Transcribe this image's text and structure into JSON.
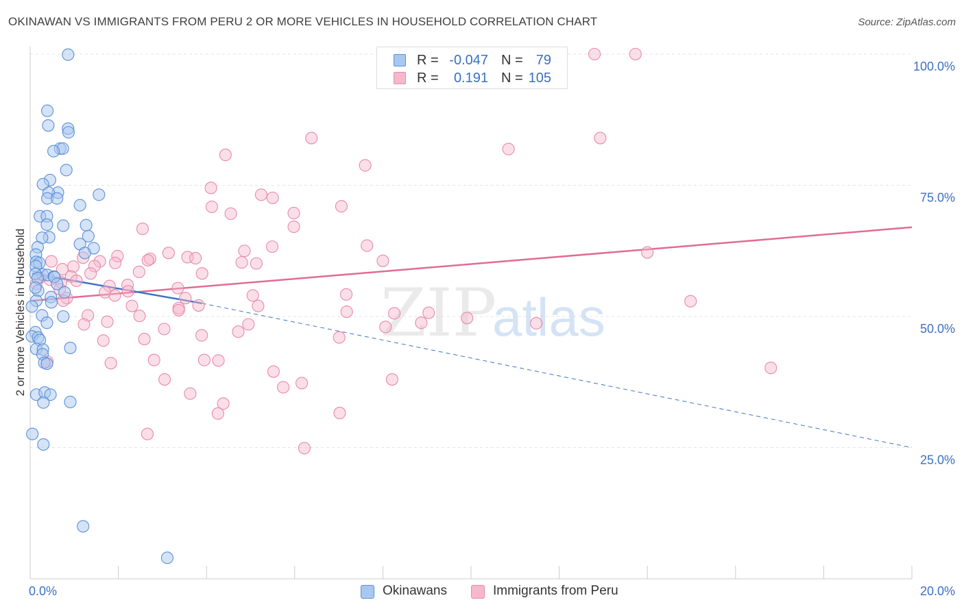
{
  "header": {
    "title": "OKINAWAN VS IMMIGRANTS FROM PERU 2 OR MORE VEHICLES IN HOUSEHOLD CORRELATION CHART",
    "source": "Source: ZipAtlas.com"
  },
  "legend_stats": [
    {
      "r_label": "R =",
      "r_value": "-0.047",
      "n_label": "N =",
      "n_value": "79"
    },
    {
      "r_label": "R =",
      "r_value": "0.191",
      "n_label": "N =",
      "n_value": "105"
    }
  ],
  "watermark": {
    "zip": "ZIP",
    "atlas": "atlas"
  },
  "colors": {
    "okinawan_fill": "#a9c8f0",
    "okinawan_stroke": "#5b8fd6",
    "okinawan_line": "#3b72c8",
    "peru_fill": "#f7b8cc",
    "peru_stroke": "#e889a7",
    "peru_line": "#e06b93",
    "axis_text": "#3a6fc4",
    "grid": "#e3e3e3"
  },
  "chart_data": {
    "type": "scatter",
    "xlabel": "",
    "ylabel": "2 or more Vehicles in Household",
    "xlim": [
      0,
      20
    ],
    "ylim": [
      0,
      100
    ],
    "x_tick_labels": [
      {
        "value": 0,
        "label": "0.0%"
      },
      {
        "value": 20,
        "label": "20.0%"
      }
    ],
    "y_tick_labels": [
      {
        "value": 100,
        "label": "100.0%"
      },
      {
        "value": 75,
        "label": "75.0%"
      },
      {
        "value": 50,
        "label": "50.0%"
      },
      {
        "value": 25,
        "label": "25.0%"
      }
    ],
    "y_gridlines": [
      100,
      75,
      50,
      25
    ],
    "x_minor_ticks": [
      2,
      4,
      6,
      8,
      10,
      12,
      14,
      16,
      18,
      20
    ],
    "legend_position": "top-center",
    "series": [
      {
        "name": "Okinawans",
        "trend": {
          "x0": 0.05,
          "y0": 58.2,
          "x1": 3.9,
          "y1": 52.5,
          "dash_x1": 20,
          "dash_y1": 25.0
        },
        "points": [
          [
            0.86,
            99.9
          ],
          [
            0.39,
            89.2
          ],
          [
            0.41,
            86.4
          ],
          [
            0.86,
            85.8
          ],
          [
            0.87,
            85.1
          ],
          [
            0.68,
            82.0
          ],
          [
            0.74,
            82.0
          ],
          [
            0.53,
            81.5
          ],
          [
            0.82,
            77.9
          ],
          [
            0.45,
            76.0
          ],
          [
            0.29,
            75.2
          ],
          [
            1.56,
            73.2
          ],
          [
            0.63,
            73.6
          ],
          [
            0.42,
            73.6
          ],
          [
            0.39,
            72.5
          ],
          [
            0.61,
            72.5
          ],
          [
            1.13,
            71.2
          ],
          [
            0.22,
            69.1
          ],
          [
            0.38,
            69.1
          ],
          [
            0.75,
            67.3
          ],
          [
            1.27,
            67.4
          ],
          [
            0.38,
            67.5
          ],
          [
            0.43,
            65.1
          ],
          [
            1.32,
            65.3
          ],
          [
            0.27,
            65.0
          ],
          [
            1.13,
            63.8
          ],
          [
            0.17,
            63.2
          ],
          [
            1.44,
            63.0
          ],
          [
            0.13,
            61.8
          ],
          [
            1.24,
            62.1
          ],
          [
            0.14,
            60.4
          ],
          [
            0.21,
            60.2
          ],
          [
            0.13,
            59.6
          ],
          [
            0.28,
            58.0
          ],
          [
            0.39,
            57.9
          ],
          [
            0.12,
            58.1
          ],
          [
            0.54,
            57.6
          ],
          [
            0.55,
            57.5
          ],
          [
            0.17,
            57.3
          ],
          [
            0.61,
            56.2
          ],
          [
            0.18,
            54.9
          ],
          [
            0.78,
            54.6
          ],
          [
            0.12,
            55.5
          ],
          [
            0.14,
            53.0
          ],
          [
            0.47,
            53.7
          ],
          [
            0.48,
            52.7
          ],
          [
            0.04,
            51.9
          ],
          [
            0.27,
            50.2
          ],
          [
            0.75,
            50.0
          ],
          [
            0.38,
            48.8
          ],
          [
            0.12,
            47.0
          ],
          [
            0.04,
            46.2
          ],
          [
            0.18,
            46.0
          ],
          [
            0.22,
            45.5
          ],
          [
            0.91,
            44.0
          ],
          [
            0.14,
            43.8
          ],
          [
            0.29,
            43.7
          ],
          [
            0.28,
            42.8
          ],
          [
            0.32,
            41.2
          ],
          [
            0.38,
            41.0
          ],
          [
            0.14,
            35.1
          ],
          [
            0.33,
            35.5
          ],
          [
            0.46,
            35.1
          ],
          [
            0.3,
            33.6
          ],
          [
            0.91,
            33.7
          ],
          [
            0.05,
            27.6
          ],
          [
            0.3,
            25.6
          ],
          [
            1.2,
            10.0
          ],
          [
            3.11,
            4.0
          ]
        ]
      },
      {
        "name": "Immigrants from Peru",
        "trend": {
          "x0": 0.05,
          "y0": 53.0,
          "x1": 20,
          "y1": 67.0
        },
        "points": [
          [
            12.8,
            100.0
          ],
          [
            13.73,
            100.0
          ],
          [
            6.38,
            84.0
          ],
          [
            12.93,
            84.0
          ],
          [
            10.85,
            81.9
          ],
          [
            4.43,
            80.8
          ],
          [
            7.6,
            78.8
          ],
          [
            4.1,
            74.5
          ],
          [
            5.24,
            73.2
          ],
          [
            5.5,
            72.6
          ],
          [
            4.12,
            70.9
          ],
          [
            7.06,
            71.0
          ],
          [
            4.55,
            69.6
          ],
          [
            5.98,
            69.7
          ],
          [
            5.98,
            67.1
          ],
          [
            2.55,
            66.7
          ],
          [
            7.64,
            63.5
          ],
          [
            5.49,
            63.3
          ],
          [
            14.0,
            62.2
          ],
          [
            3.14,
            62.1
          ],
          [
            4.86,
            62.5
          ],
          [
            1.2,
            61.2
          ],
          [
            1.98,
            61.5
          ],
          [
            2.72,
            61.0
          ],
          [
            3.57,
            61.3
          ],
          [
            3.75,
            61.1
          ],
          [
            1.58,
            60.5
          ],
          [
            2.67,
            60.7
          ],
          [
            8.0,
            60.6
          ],
          [
            0.48,
            60.5
          ],
          [
            4.8,
            60.3
          ],
          [
            5.13,
            60.1
          ],
          [
            1.93,
            60.2
          ],
          [
            1.46,
            59.6
          ],
          [
            0.98,
            59.5
          ],
          [
            0.73,
            59.0
          ],
          [
            2.47,
            58.5
          ],
          [
            3.9,
            58.2
          ],
          [
            1.37,
            58.2
          ],
          [
            0.93,
            57.6
          ],
          [
            0.22,
            57.4
          ],
          [
            0.45,
            57.0
          ],
          [
            1.05,
            56.8
          ],
          [
            0.7,
            56.5
          ],
          [
            0.14,
            56.2
          ],
          [
            2.21,
            56.0
          ],
          [
            1.8,
            55.8
          ],
          [
            3.35,
            55.4
          ],
          [
            0.67,
            55.2
          ],
          [
            1.7,
            54.6
          ],
          [
            2.22,
            54.8
          ],
          [
            1.92,
            54.0
          ],
          [
            7.17,
            54.2
          ],
          [
            5.05,
            54.0
          ],
          [
            0.83,
            53.5
          ],
          [
            0.75,
            53.0
          ],
          [
            3.52,
            53.5
          ],
          [
            14.98,
            52.9
          ],
          [
            3.82,
            52.1
          ],
          [
            5.17,
            52.0
          ],
          [
            2.31,
            52.0
          ],
          [
            3.37,
            51.6
          ],
          [
            3.37,
            51.2
          ],
          [
            7.18,
            50.9
          ],
          [
            8.26,
            50.6
          ],
          [
            9.04,
            50.7
          ],
          [
            1.31,
            50.2
          ],
          [
            9.91,
            49.7
          ],
          [
            2.48,
            50.1
          ],
          [
            1.75,
            49.0
          ],
          [
            8.87,
            48.8
          ],
          [
            4.95,
            48.5
          ],
          [
            11.48,
            48.7
          ],
          [
            1.22,
            48.5
          ],
          [
            8.06,
            48.0
          ],
          [
            3.04,
            47.6
          ],
          [
            4.72,
            47.1
          ],
          [
            3.89,
            46.4
          ],
          [
            7.01,
            46.0
          ],
          [
            2.59,
            45.7
          ],
          [
            1.66,
            45.4
          ],
          [
            3.95,
            41.7
          ],
          [
            0.39,
            41.4
          ],
          [
            4.27,
            41.6
          ],
          [
            2.81,
            41.7
          ],
          [
            1.83,
            41.1
          ],
          [
            16.8,
            40.2
          ],
          [
            5.52,
            39.5
          ],
          [
            3.05,
            38.0
          ],
          [
            8.21,
            38.0
          ],
          [
            6.16,
            37.3
          ],
          [
            5.74,
            36.5
          ],
          [
            3.63,
            35.3
          ],
          [
            4.38,
            33.4
          ],
          [
            4.26,
            31.5
          ],
          [
            7.02,
            31.6
          ],
          [
            2.66,
            27.6
          ],
          [
            6.22,
            24.9
          ]
        ]
      }
    ],
    "legend_entries": [
      "Okinawans",
      "Immigrants from Peru"
    ]
  }
}
